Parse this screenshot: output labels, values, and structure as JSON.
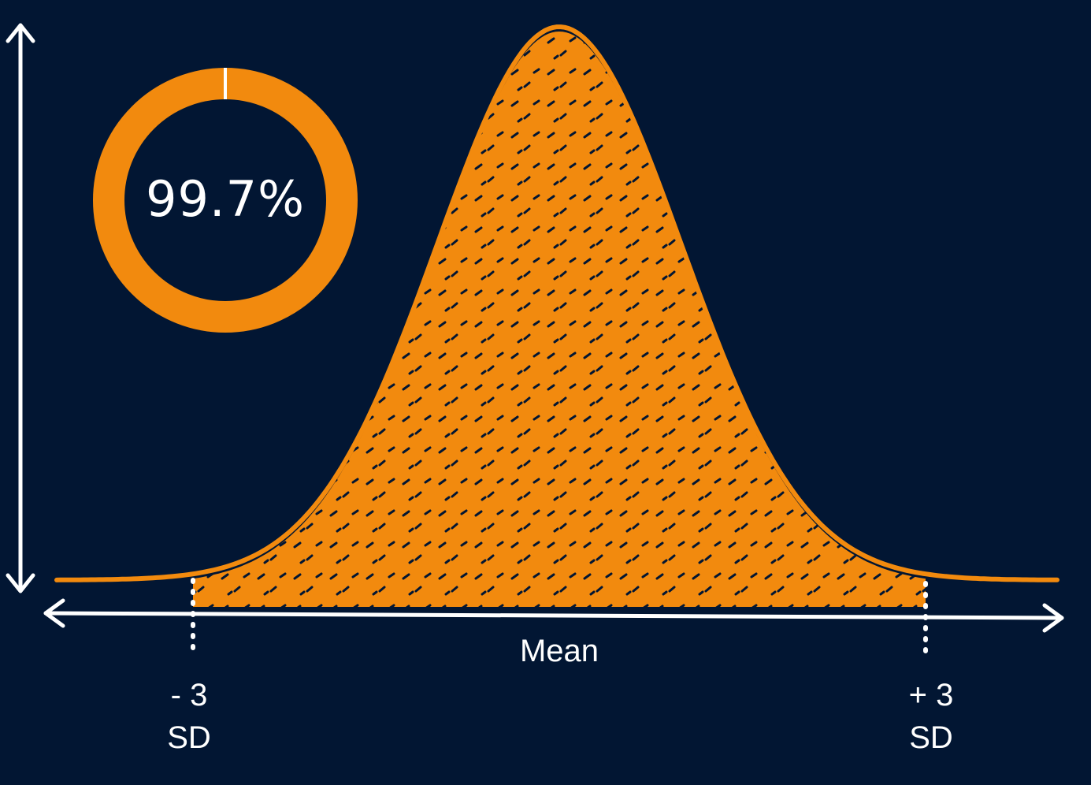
{
  "chart_data": {
    "type": "area",
    "distribution": "normal",
    "percentage_label": "99.7%",
    "percentage_value": 99.7,
    "shaded_range_sd": [
      -3,
      3
    ],
    "x_range_sd": [
      -4.5,
      6.5
    ],
    "center_label": "Mean",
    "left_marker": {
      "line1": "- 3",
      "line2": "SD",
      "value": -3
    },
    "right_marker": {
      "line1": "+ 3",
      "line2": "SD",
      "value": 3
    },
    "axes": {
      "y_arrow": true,
      "x_double_arrow": true,
      "grid": false
    }
  },
  "colors": {
    "background": "#021633",
    "accent": "#F28A0E",
    "text": "#FFFFFF"
  }
}
